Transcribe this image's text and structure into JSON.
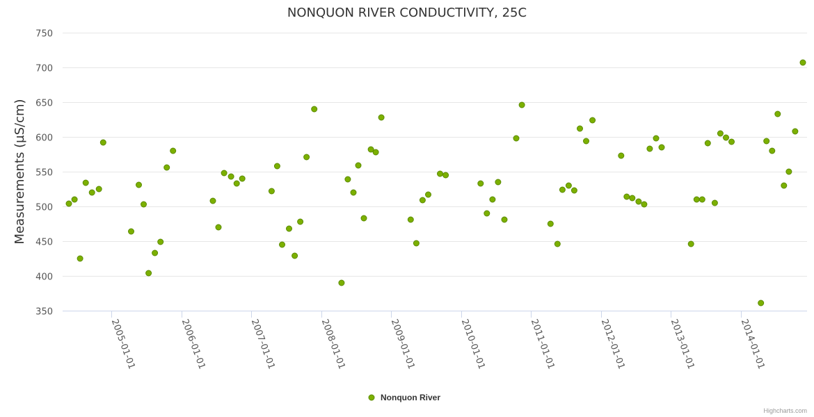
{
  "chart_data": {
    "type": "scatter",
    "title": "NONQUON RIVER CONDUCTIVITY, 25C",
    "xlabel": "",
    "ylabel": "Measurements (µS/cm)",
    "xlim": [
      2004.3,
      2014.95
    ],
    "ylim": [
      350,
      750
    ],
    "yticks": [
      350,
      400,
      450,
      500,
      550,
      600,
      650,
      700,
      750
    ],
    "xticks": [
      {
        "value": 2005,
        "label": "2005-01-01"
      },
      {
        "value": 2006,
        "label": "2006-01-01"
      },
      {
        "value": 2007,
        "label": "2007-01-01"
      },
      {
        "value": 2008,
        "label": "2008-01-01"
      },
      {
        "value": 2009,
        "label": "2009-01-01"
      },
      {
        "value": 2010,
        "label": "2010-01-01"
      },
      {
        "value": 2011,
        "label": "2011-01-01"
      },
      {
        "value": 2012,
        "label": "2012-01-01"
      },
      {
        "value": 2013,
        "label": "2013-01-01"
      },
      {
        "value": 2014,
        "label": "2014-01-01"
      }
    ],
    "grid": true,
    "legend_position": "bottom-center",
    "series": [
      {
        "name": "Nonquon River",
        "color": "#7cb000",
        "border_color": "#5a8a00",
        "points": [
          {
            "x": 2004.39,
            "y": 504
          },
          {
            "x": 2004.47,
            "y": 510
          },
          {
            "x": 2004.55,
            "y": 425
          },
          {
            "x": 2004.63,
            "y": 534
          },
          {
            "x": 2004.72,
            "y": 520
          },
          {
            "x": 2004.82,
            "y": 525
          },
          {
            "x": 2004.88,
            "y": 592
          },
          {
            "x": 2005.28,
            "y": 464
          },
          {
            "x": 2005.39,
            "y": 531
          },
          {
            "x": 2005.46,
            "y": 503
          },
          {
            "x": 2005.53,
            "y": 404
          },
          {
            "x": 2005.62,
            "y": 433
          },
          {
            "x": 2005.7,
            "y": 449
          },
          {
            "x": 2005.79,
            "y": 556
          },
          {
            "x": 2005.88,
            "y": 580
          },
          {
            "x": 2006.45,
            "y": 508
          },
          {
            "x": 2006.53,
            "y": 470
          },
          {
            "x": 2006.61,
            "y": 548
          },
          {
            "x": 2006.71,
            "y": 543
          },
          {
            "x": 2006.79,
            "y": 533
          },
          {
            "x": 2006.87,
            "y": 540
          },
          {
            "x": 2007.29,
            "y": 522
          },
          {
            "x": 2007.37,
            "y": 558
          },
          {
            "x": 2007.44,
            "y": 445
          },
          {
            "x": 2007.54,
            "y": 468
          },
          {
            "x": 2007.62,
            "y": 429
          },
          {
            "x": 2007.7,
            "y": 478
          },
          {
            "x": 2007.79,
            "y": 571
          },
          {
            "x": 2007.9,
            "y": 640
          },
          {
            "x": 2008.29,
            "y": 390
          },
          {
            "x": 2008.38,
            "y": 539
          },
          {
            "x": 2008.46,
            "y": 520
          },
          {
            "x": 2008.53,
            "y": 559
          },
          {
            "x": 2008.61,
            "y": 483
          },
          {
            "x": 2008.71,
            "y": 582
          },
          {
            "x": 2008.78,
            "y": 578
          },
          {
            "x": 2008.86,
            "y": 628
          },
          {
            "x": 2009.28,
            "y": 481
          },
          {
            "x": 2009.36,
            "y": 447
          },
          {
            "x": 2009.45,
            "y": 509
          },
          {
            "x": 2009.53,
            "y": 517
          },
          {
            "x": 2009.7,
            "y": 547
          },
          {
            "x": 2009.78,
            "y": 545
          },
          {
            "x": 2010.28,
            "y": 533
          },
          {
            "x": 2010.37,
            "y": 490
          },
          {
            "x": 2010.45,
            "y": 510
          },
          {
            "x": 2010.53,
            "y": 535
          },
          {
            "x": 2010.62,
            "y": 481
          },
          {
            "x": 2010.79,
            "y": 598
          },
          {
            "x": 2010.87,
            "y": 646
          },
          {
            "x": 2011.28,
            "y": 475
          },
          {
            "x": 2011.38,
            "y": 446
          },
          {
            "x": 2011.45,
            "y": 524
          },
          {
            "x": 2011.54,
            "y": 530
          },
          {
            "x": 2011.62,
            "y": 523
          },
          {
            "x": 2011.7,
            "y": 612
          },
          {
            "x": 2011.79,
            "y": 594
          },
          {
            "x": 2011.88,
            "y": 624
          },
          {
            "x": 2012.29,
            "y": 573
          },
          {
            "x": 2012.37,
            "y": 514
          },
          {
            "x": 2012.45,
            "y": 512
          },
          {
            "x": 2012.54,
            "y": 507
          },
          {
            "x": 2012.62,
            "y": 503
          },
          {
            "x": 2012.7,
            "y": 583
          },
          {
            "x": 2012.79,
            "y": 598
          },
          {
            "x": 2012.87,
            "y": 585
          },
          {
            "x": 2013.29,
            "y": 446
          },
          {
            "x": 2013.37,
            "y": 510
          },
          {
            "x": 2013.45,
            "y": 510
          },
          {
            "x": 2013.53,
            "y": 591
          },
          {
            "x": 2013.63,
            "y": 505
          },
          {
            "x": 2013.71,
            "y": 605
          },
          {
            "x": 2013.79,
            "y": 599
          },
          {
            "x": 2013.87,
            "y": 593
          },
          {
            "x": 2014.29,
            "y": 361
          },
          {
            "x": 2014.37,
            "y": 594
          },
          {
            "x": 2014.45,
            "y": 580
          },
          {
            "x": 2014.53,
            "y": 633
          },
          {
            "x": 2014.62,
            "y": 530
          },
          {
            "x": 2014.69,
            "y": 550
          },
          {
            "x": 2014.78,
            "y": 608
          },
          {
            "x": 2014.89,
            "y": 707
          }
        ]
      }
    ]
  },
  "credits": "Highcharts.com"
}
